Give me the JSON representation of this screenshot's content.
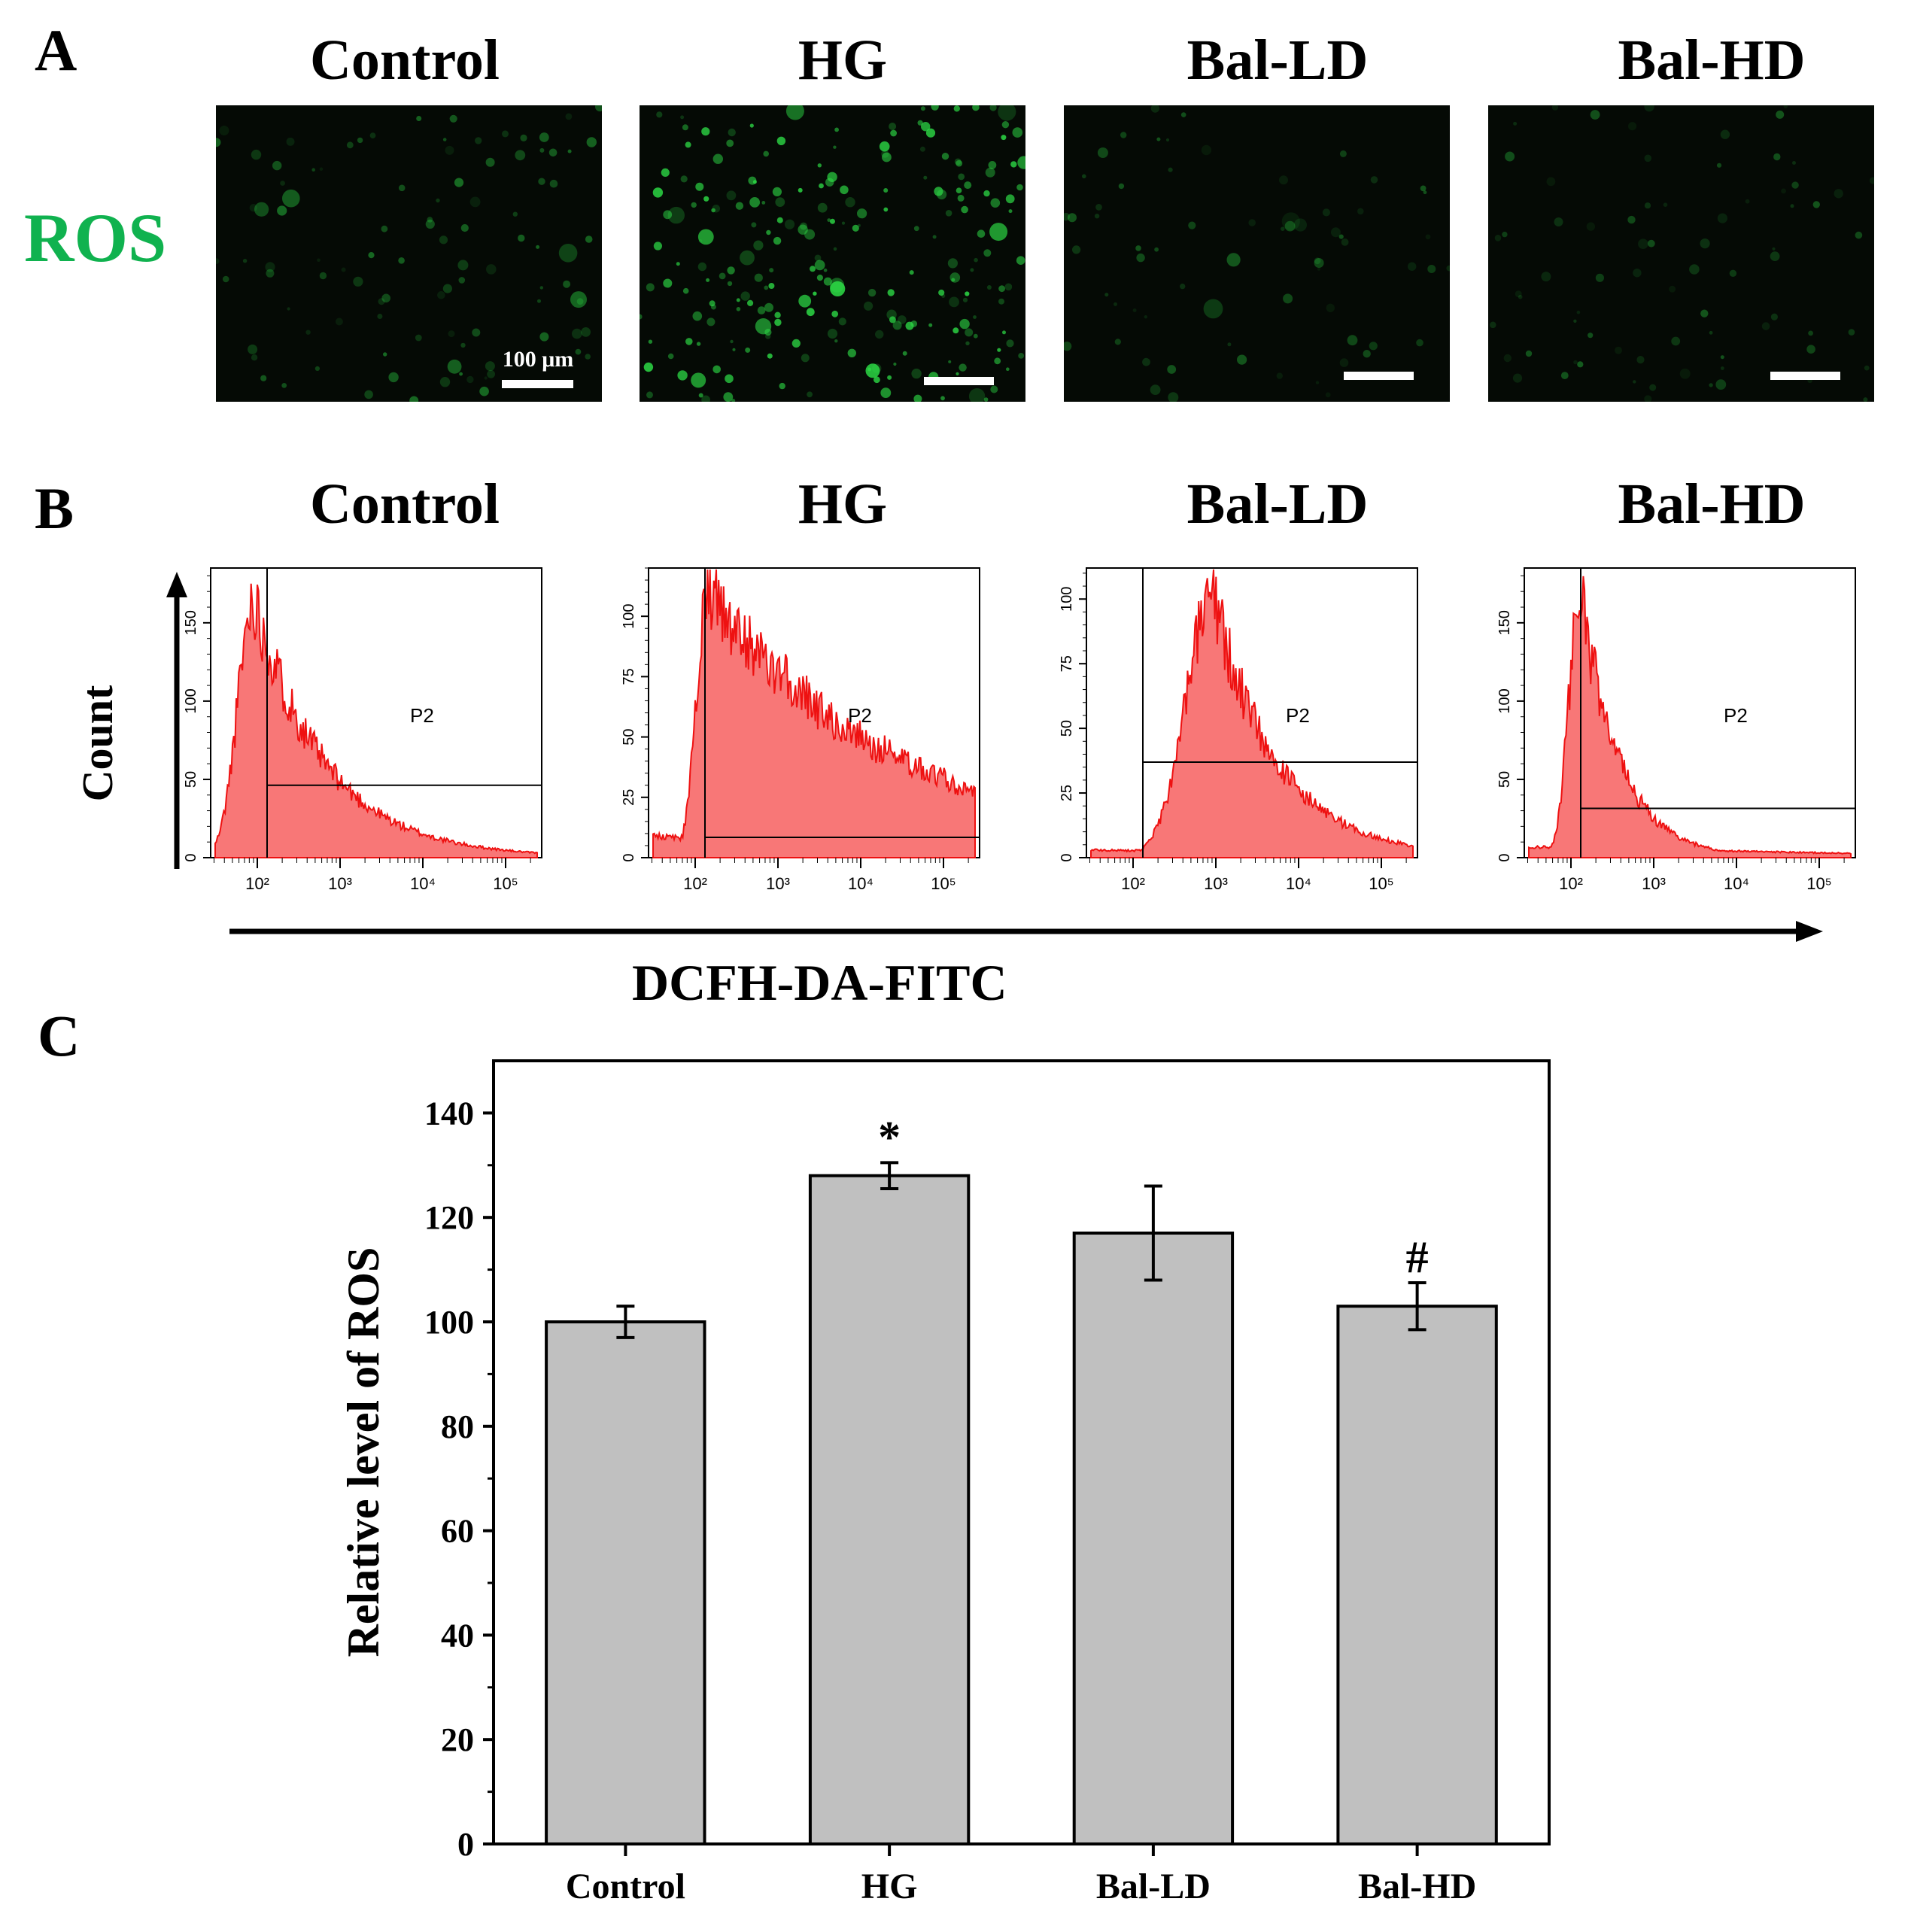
{
  "colors": {
    "ros_green": "#10b24f",
    "fluorescence": "#2ddc46",
    "histogram_fill": "#f87777",
    "histogram_stroke": "#ee1111",
    "bar_fill": "#c0c0c0",
    "bar_edge": "#000000"
  },
  "panel_a": {
    "letter": "A",
    "row_label": "ROS",
    "groups": [
      "Control",
      "HG",
      "Bal-LD",
      "Bal-HD"
    ],
    "scale_label": "100 μm",
    "intensity": [
      0.35,
      1.0,
      0.18,
      0.22
    ]
  },
  "panel_b": {
    "letter": "B",
    "groups": [
      "Control",
      "HG",
      "Bal-LD",
      "Bal-HD"
    ],
    "y_axis_label": "Count",
    "x_axis_label": "DCFH-DA-FITC",
    "gate_label": "P2",
    "x_tick_labels": [
      "10²",
      "10³",
      "10⁴",
      "10⁵"
    ],
    "histograms": [
      {
        "group": "Control",
        "y_ticks": [
          "0",
          "50",
          "100",
          "150"
        ],
        "y_max": 185,
        "peak_value": 165
      },
      {
        "group": "HG",
        "y_ticks": [
          "0",
          "25",
          "50",
          "75",
          "100"
        ],
        "y_max": 120,
        "peak_value": 110
      },
      {
        "group": "Bal-LD",
        "y_ticks": [
          "0",
          "25",
          "50",
          "75",
          "100"
        ],
        "y_max": 112,
        "peak_value": 100
      },
      {
        "group": "Bal-HD",
        "y_ticks": [
          "0",
          "50",
          "100",
          "150"
        ],
        "y_max": 185,
        "peak_value": 170
      }
    ]
  },
  "panel_c": {
    "letter": "C"
  },
  "chart_data": {
    "type": "bar",
    "categories": [
      "Control",
      "HG",
      "Bal-LD",
      "Bal-HD"
    ],
    "values": [
      100,
      128,
      117,
      103
    ],
    "errors": [
      3,
      2.5,
      9,
      4.5
    ],
    "annotations": [
      "",
      "*",
      "",
      "#"
    ],
    "ylabel": "Relative level of ROS",
    "xlabel": "",
    "ylim": [
      0,
      150
    ],
    "y_ticks": [
      0,
      20,
      40,
      60,
      80,
      100,
      120,
      140
    ],
    "grid": false,
    "legend": "none"
  }
}
